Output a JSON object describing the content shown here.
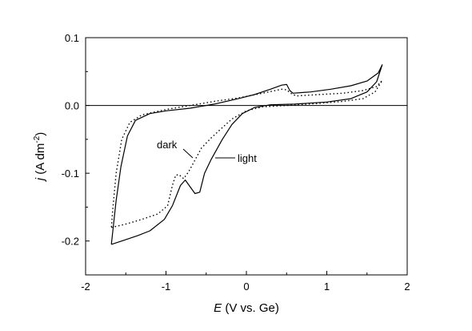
{
  "chart_data": {
    "type": "line",
    "xlabel": {
      "symbol": "E",
      "rest": " (V vs. Ge)"
    },
    "ylabel": {
      "symbol": "j",
      "rest": " (A dm",
      "sup": "-2",
      "close": ")"
    },
    "xlim": [
      -2,
      2
    ],
    "ylim": [
      -0.25,
      0.1
    ],
    "x_ticks": [
      -2,
      -1,
      0,
      1,
      2
    ],
    "x_tick_labels": [
      "-2",
      "-1",
      "0",
      "1",
      "2"
    ],
    "y_ticks": [
      -0.2,
      -0.1,
      0.0,
      0.1
    ],
    "y_tick_labels": [
      "-0.2",
      "-0.1",
      "0.0",
      "0.1"
    ],
    "zero_line": 0,
    "grid": false,
    "annotations": [
      {
        "text": "dark",
        "series": "dark"
      },
      {
        "text": "light",
        "series": "light"
      }
    ],
    "series": [
      {
        "name": "light",
        "style": "solid",
        "points": [
          [
            -1.68,
            -0.205
          ],
          [
            -1.55,
            -0.2
          ],
          [
            -1.35,
            -0.192
          ],
          [
            -1.2,
            -0.185
          ],
          [
            -1.02,
            -0.168
          ],
          [
            -0.92,
            -0.148
          ],
          [
            -0.82,
            -0.118
          ],
          [
            -0.76,
            -0.11
          ],
          [
            -0.7,
            -0.12
          ],
          [
            -0.64,
            -0.13
          ],
          [
            -0.58,
            -0.128
          ],
          [
            -0.52,
            -0.1
          ],
          [
            -0.44,
            -0.08
          ],
          [
            -0.3,
            -0.05
          ],
          [
            -0.18,
            -0.028
          ],
          [
            -0.05,
            -0.012
          ],
          [
            0.1,
            -0.003
          ],
          [
            0.3,
            0.001
          ],
          [
            0.6,
            0.002
          ],
          [
            1.0,
            0.005
          ],
          [
            1.3,
            0.01
          ],
          [
            1.5,
            0.02
          ],
          [
            1.62,
            0.035
          ],
          [
            1.69,
            0.06
          ],
          [
            1.64,
            0.048
          ],
          [
            1.5,
            0.036
          ],
          [
            1.3,
            0.029
          ],
          [
            1.05,
            0.024
          ],
          [
            0.8,
            0.02
          ],
          [
            0.58,
            0.018
          ],
          [
            0.54,
            0.022
          ],
          [
            0.5,
            0.031
          ],
          [
            0.44,
            0.03
          ],
          [
            0.3,
            0.024
          ],
          [
            0.1,
            0.016
          ],
          [
            -0.1,
            0.01
          ],
          [
            -0.4,
            0.002
          ],
          [
            -0.7,
            -0.004
          ],
          [
            -1.0,
            -0.008
          ],
          [
            -1.2,
            -0.012
          ],
          [
            -1.38,
            -0.022
          ],
          [
            -1.48,
            -0.045
          ],
          [
            -1.56,
            -0.09
          ],
          [
            -1.62,
            -0.14
          ],
          [
            -1.68,
            -0.205
          ]
        ]
      },
      {
        "name": "dark",
        "style": "dotted",
        "points": [
          [
            -1.68,
            -0.18
          ],
          [
            -1.5,
            -0.175
          ],
          [
            -1.3,
            -0.168
          ],
          [
            -1.1,
            -0.16
          ],
          [
            -0.98,
            -0.148
          ],
          [
            -0.92,
            -0.118
          ],
          [
            -0.88,
            -0.103
          ],
          [
            -0.84,
            -0.102
          ],
          [
            -0.78,
            -0.108
          ],
          [
            -0.72,
            -0.098
          ],
          [
            -0.66,
            -0.085
          ],
          [
            -0.56,
            -0.063
          ],
          [
            -0.44,
            -0.048
          ],
          [
            -0.32,
            -0.035
          ],
          [
            -0.18,
            -0.02
          ],
          [
            0.0,
            -0.008
          ],
          [
            0.2,
            -0.002
          ],
          [
            0.5,
            0.0
          ],
          [
            0.9,
            0.003
          ],
          [
            1.2,
            0.006
          ],
          [
            1.45,
            0.01
          ],
          [
            1.6,
            0.02
          ],
          [
            1.69,
            0.037
          ],
          [
            1.62,
            0.028
          ],
          [
            1.45,
            0.022
          ],
          [
            1.2,
            0.018
          ],
          [
            0.9,
            0.016
          ],
          [
            0.62,
            0.014
          ],
          [
            0.55,
            0.018
          ],
          [
            0.5,
            0.023
          ],
          [
            0.44,
            0.024
          ],
          [
            0.2,
            0.018
          ],
          [
            -0.1,
            0.011
          ],
          [
            -0.4,
            0.006
          ],
          [
            -0.7,
            0.0
          ],
          [
            -1.0,
            -0.006
          ],
          [
            -1.3,
            -0.014
          ],
          [
            -1.45,
            -0.025
          ],
          [
            -1.55,
            -0.05
          ],
          [
            -1.62,
            -0.1
          ],
          [
            -1.66,
            -0.15
          ],
          [
            -1.68,
            -0.18
          ]
        ]
      }
    ]
  }
}
